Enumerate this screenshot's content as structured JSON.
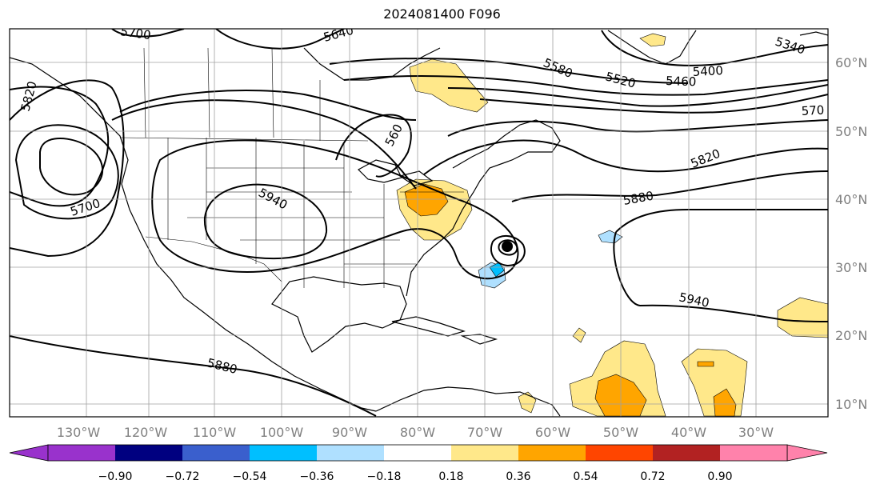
{
  "title": "2024081400 F096",
  "lon_labels": [
    "130°W",
    "120°W",
    "110°W",
    "100°W",
    "90°W",
    "80°W",
    "70°W",
    "60°W",
    "50°W",
    "40°W",
    "30°W"
  ],
  "lat_labels": [
    "60°N",
    "50°N",
    "40°N",
    "30°N",
    "20°N",
    "10°N"
  ],
  "contour_labels": [
    "5700",
    "5820",
    "5700",
    "5940",
    "5640",
    "560",
    "5580",
    "5520",
    "5460",
    "5400",
    "5340",
    "570",
    "5820",
    "5880",
    "5940",
    "5880"
  ],
  "colorbar": {
    "labels": [
      "−0.90",
      "−0.72",
      "−0.54",
      "−0.36",
      "−0.18",
      "0.18",
      "0.36",
      "0.54",
      "0.72",
      "0.90"
    ],
    "colors": [
      "#9932cc",
      "#000080",
      "#3a5fcd",
      "#00bfff",
      "#afe0ff",
      "#ffffff",
      "#ffe88a",
      "#ffa500",
      "#ff4500",
      "#b22222",
      "#ff82ab"
    ]
  },
  "colors": {
    "grid": "#a0a0a0",
    "coast": "#000000",
    "contour": "#000000"
  }
}
